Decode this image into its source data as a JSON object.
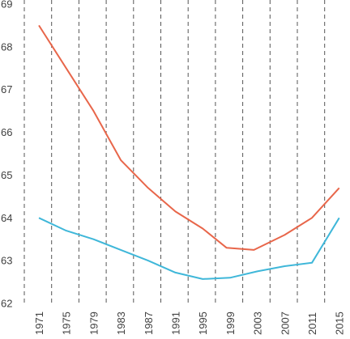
{
  "chart_data": {
    "type": "line",
    "x": [
      1971,
      1975,
      1979,
      1983,
      1987,
      1991,
      1995,
      1999,
      2003,
      2007,
      2011,
      2015
    ],
    "x_tick_labels": [
      "1971",
      "1975",
      "1979",
      "1983",
      "1987",
      "1991",
      "1995",
      "1999",
      "2003",
      "2007",
      "2011",
      "2015"
    ],
    "y_tick_labels": [
      "62",
      "63",
      "64",
      "65",
      "66",
      "67",
      "68",
      "69"
    ],
    "ylim": [
      62,
      69
    ],
    "grid": "vertical dashed",
    "series": [
      {
        "color": "#e8664a",
        "points": [
          [
            1971,
            68.5
          ],
          [
            1975,
            67.5
          ],
          [
            1979,
            66.5
          ],
          [
            1983,
            65.35
          ],
          [
            1987,
            64.7
          ],
          [
            1991,
            64.15
          ],
          [
            1995,
            63.75
          ],
          [
            1998.5,
            63.3
          ],
          [
            2002.5,
            63.25
          ],
          [
            2007,
            63.6
          ],
          [
            2011,
            64.0
          ],
          [
            2015,
            64.7
          ]
        ]
      },
      {
        "color": "#3fb7d9",
        "points": [
          [
            1971,
            64.0
          ],
          [
            1975,
            63.7
          ],
          [
            1979,
            63.5
          ],
          [
            1983,
            63.25
          ],
          [
            1987,
            63.0
          ],
          [
            1991,
            62.72
          ],
          [
            1995,
            62.57
          ],
          [
            1999,
            62.6
          ],
          [
            2003,
            62.75
          ],
          [
            2007,
            62.87
          ],
          [
            2011,
            62.95
          ],
          [
            2015,
            64.0
          ]
        ]
      }
    ]
  }
}
